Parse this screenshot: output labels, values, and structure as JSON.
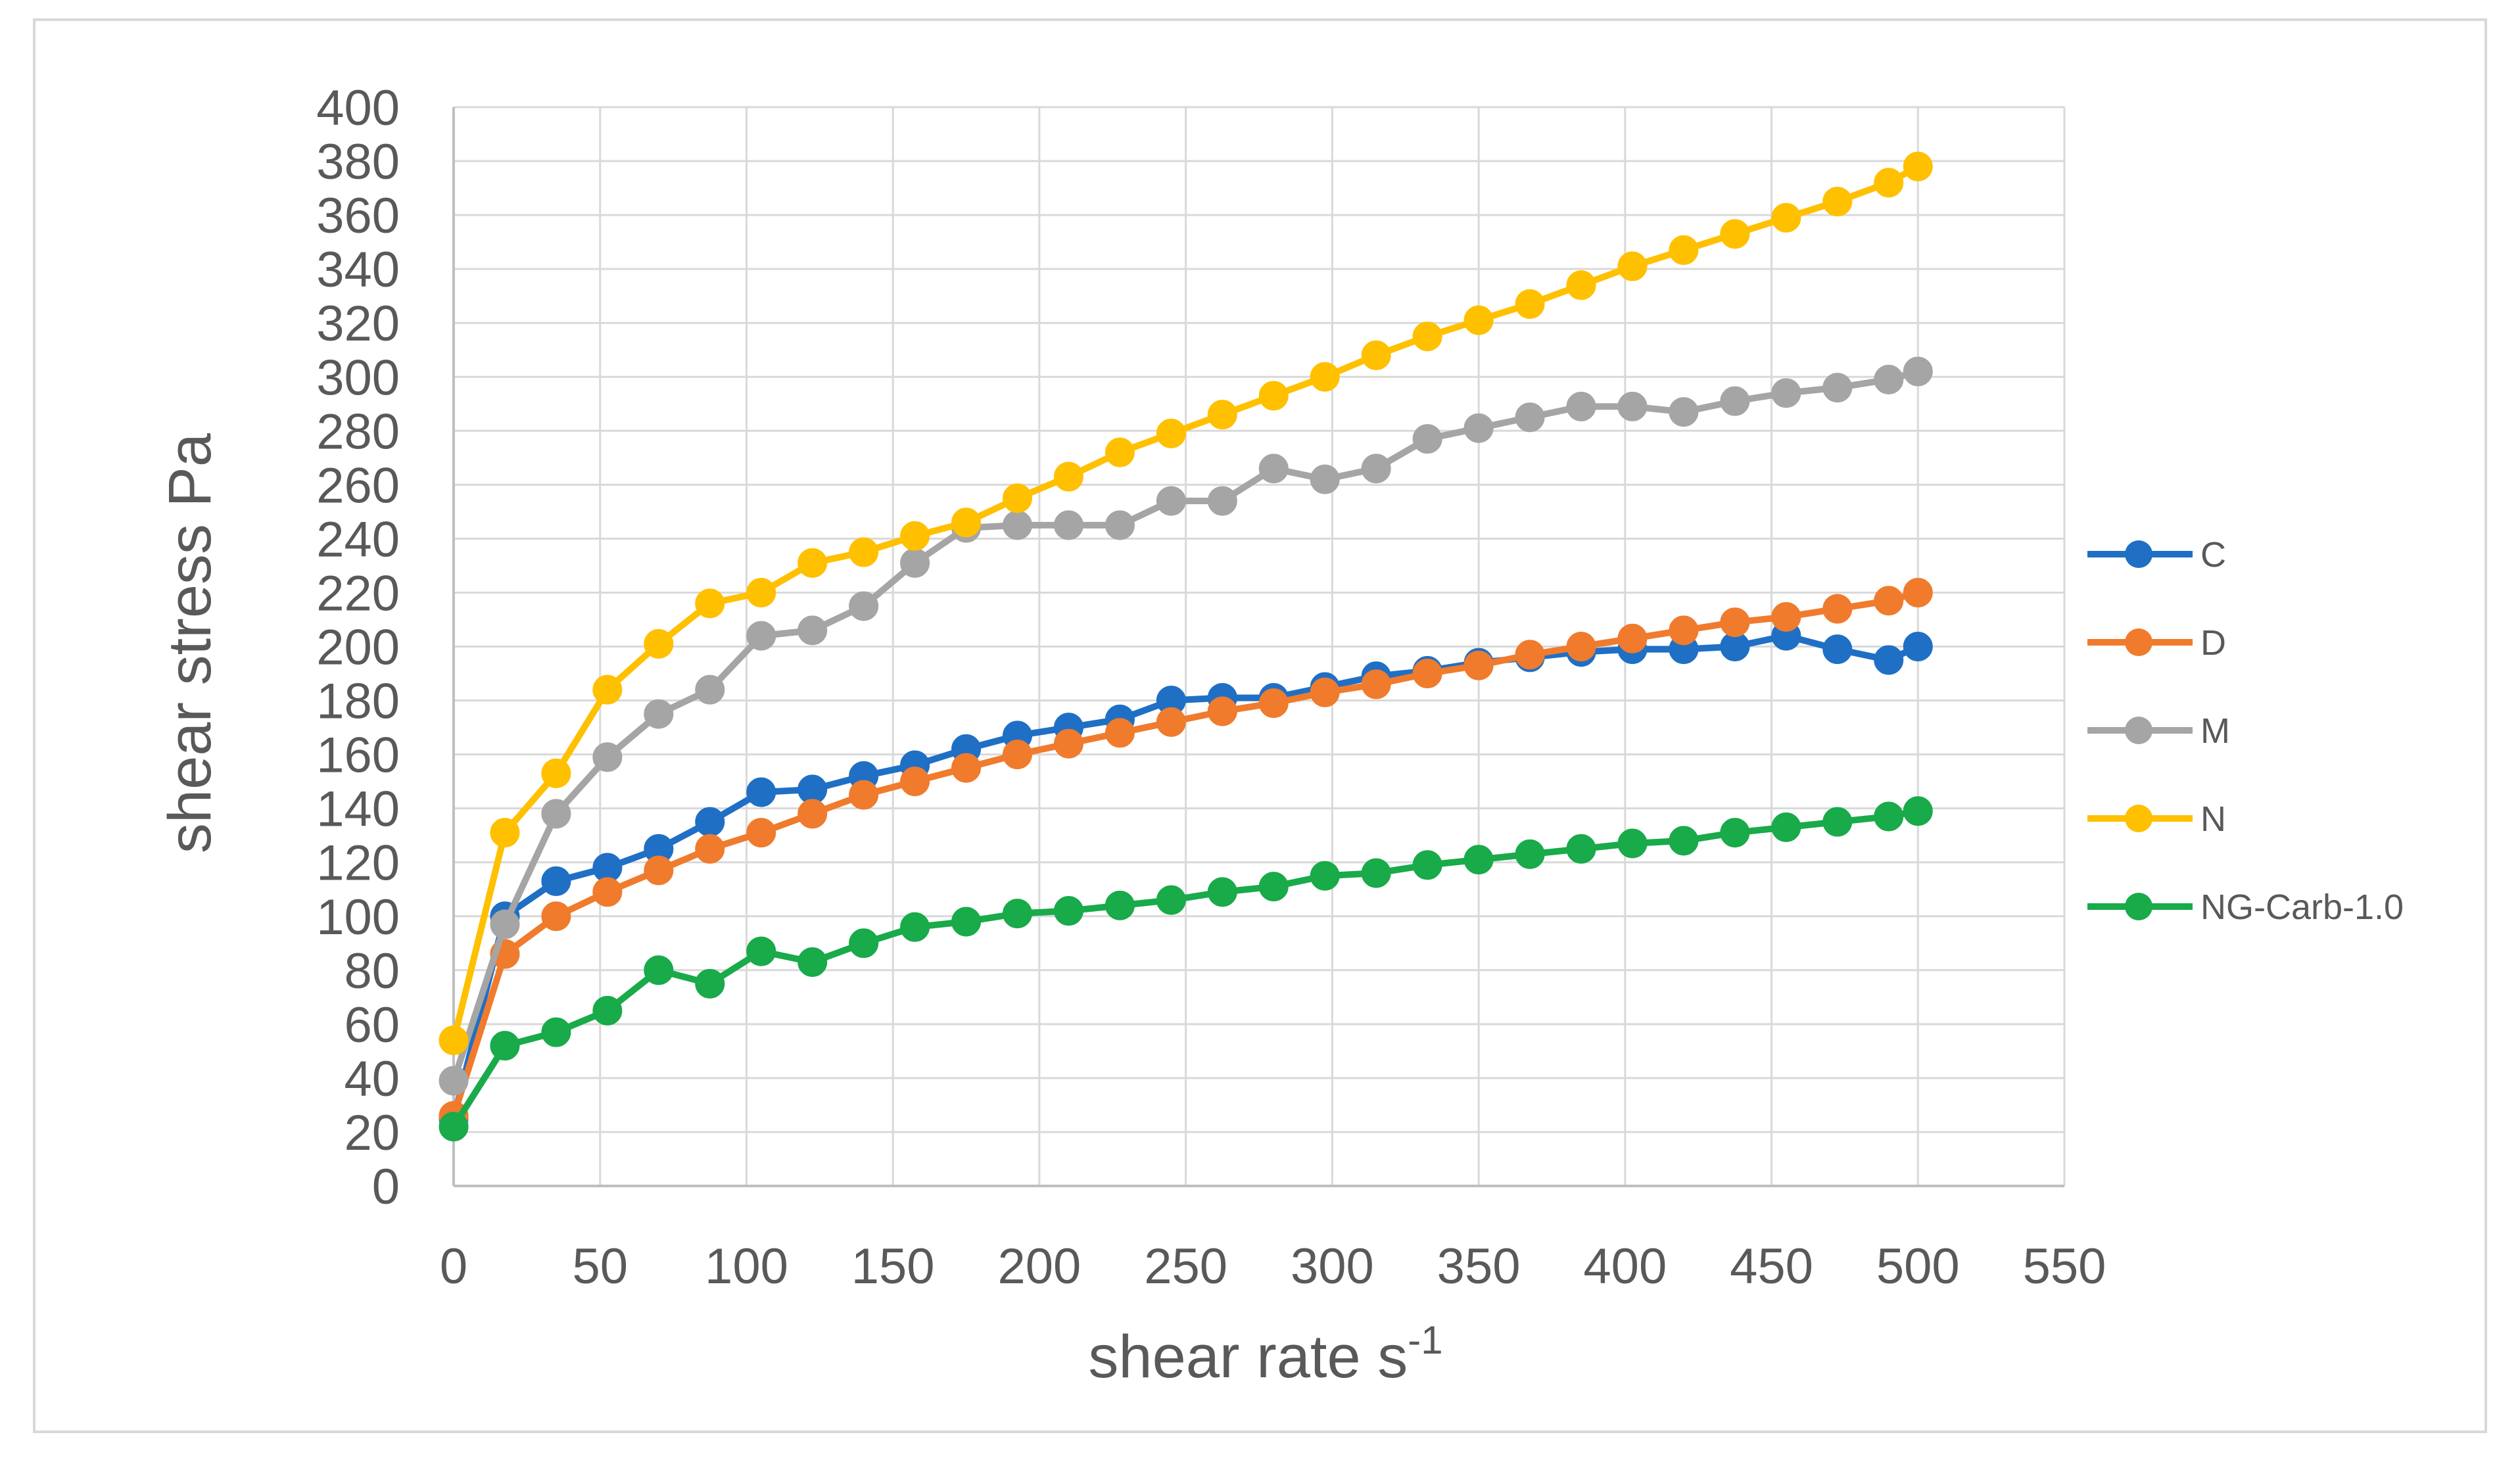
{
  "chart_data": {
    "type": "line",
    "title": "",
    "xlabel": "shear rate s",
    "xlabel_superscript": "-1",
    "ylabel": "shear stress Pa",
    "xlim": [
      0,
      550
    ],
    "ylim": [
      0,
      400
    ],
    "x_ticks": [
      "0",
      "50",
      "100",
      "150",
      "200",
      "250",
      "300",
      "350",
      "400",
      "450",
      "500",
      "550"
    ],
    "y_ticks": [
      "0",
      "20",
      "40",
      "60",
      "80",
      "100",
      "120",
      "140",
      "160",
      "180",
      "200",
      "220",
      "240",
      "260",
      "280",
      "300",
      "320",
      "340",
      "360",
      "380",
      "400"
    ],
    "grid": true,
    "legend_position": "right",
    "x": [
      0,
      17.5,
      35,
      52.5,
      70,
      87.5,
      105,
      122.5,
      140,
      157.5,
      175,
      192.5,
      210,
      227.5,
      245,
      262.5,
      280,
      297.5,
      315,
      332.5,
      350,
      367.5,
      385,
      402.5,
      420,
      437.5,
      455,
      472.5,
      490,
      500
    ],
    "series": [
      {
        "name": "C",
        "color": "#1f6fc5",
        "values": [
          25,
          100,
          113,
          118,
          125,
          135,
          146,
          147,
          152,
          156,
          162,
          167,
          170,
          173,
          180,
          181,
          181,
          185,
          189,
          191,
          194,
          196,
          198,
          199,
          199,
          200,
          204,
          199,
          195,
          200
        ]
      },
      {
        "name": "D",
        "color": "#f07b2d",
        "values": [
          26,
          86,
          100,
          109,
          117,
          125,
          131,
          138,
          145,
          150,
          155,
          160,
          164,
          168,
          172,
          176,
          179,
          183,
          186,
          190,
          193,
          197,
          200,
          203,
          206,
          209,
          211,
          214,
          217,
          220
        ]
      },
      {
        "name": "M",
        "color": "#a5a5a5",
        "values": [
          39,
          97,
          138,
          159,
          175,
          184,
          204,
          206,
          215,
          231,
          244,
          245,
          245,
          245,
          254,
          254,
          266,
          262,
          266,
          277,
          281,
          285,
          289,
          289,
          287,
          291,
          294,
          296,
          299,
          302
        ]
      },
      {
        "name": "N",
        "color": "#ffc000",
        "values": [
          54,
          131,
          153,
          184,
          201,
          216,
          220,
          231,
          235,
          241,
          246,
          255,
          263,
          272,
          279,
          286,
          293,
          300,
          308,
          315,
          321,
          327,
          334,
          341,
          347,
          353,
          359,
          365,
          372,
          378
        ]
      },
      {
        "name": "NG-Carb-1.0",
        "color": "#19aa4a",
        "values": [
          22,
          52,
          57,
          65,
          80,
          75,
          87,
          83,
          90,
          96,
          98,
          101,
          102,
          104,
          106,
          109,
          111,
          115,
          116,
          119,
          121,
          123,
          125,
          127,
          128,
          131,
          133,
          135,
          137,
          139
        ]
      }
    ]
  }
}
